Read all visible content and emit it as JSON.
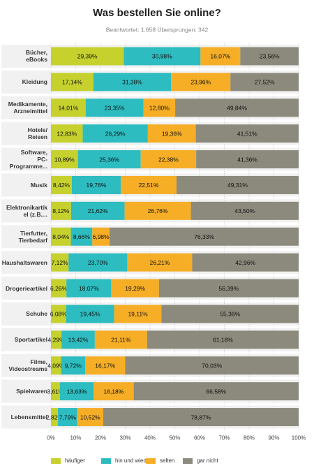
{
  "chart_data": {
    "type": "stacked-bar-horizontal",
    "title": "Was bestellen Sie online?",
    "subtitle": "Beantwortet: 1.658  Übersprungen: 342",
    "categories": [
      "Bücher,\neBooks",
      "Kleidung",
      "Medikamente,\nArzneimittel",
      "Hotels/\nReisen",
      "Software,\nPC-\nProgramme...",
      "Musik",
      "Elektronikartik\nel (z.B....",
      "Tierfutter,\nTierbedarf",
      "Haushaltswaren",
      "Drogerieartikel",
      "Schuhe",
      "Sportartikel",
      "Filme,\nVideostreams",
      "Spielwaren",
      "Lebensmittel"
    ],
    "series": [
      {
        "name": "häufiger",
        "color": "#c6d12e",
        "values": [
          29.39,
          17.14,
          14.01,
          12.83,
          10.89,
          8.42,
          8.12,
          8.04,
          7.12,
          6.26,
          6.08,
          4.29,
          4.09,
          3.61,
          2.82
        ],
        "value_labels": [
          "29,39%",
          "17,14%",
          "14,01%",
          "12,83%",
          "10,89%",
          "8,42%",
          "8,12%",
          "8,04%",
          "7,12%",
          "6,26%",
          "6,08%",
          "4,29%",
          "4,09%",
          "3,61%",
          "2,82%"
        ]
      },
      {
        "name": "hin und wieder",
        "color": "#2dbcc0",
        "values": [
          30.98,
          31.38,
          23.35,
          26.29,
          25.36,
          19.76,
          21.62,
          8.66,
          23.7,
          18.07,
          19.45,
          13.42,
          9.72,
          13.63,
          7.79
        ],
        "value_labels": [
          "30,98%",
          "31,38%",
          "23,35%",
          "26,29%",
          "25,36%",
          "19,76%",
          "21,62%",
          "8,66%",
          "23,70%",
          "18,07%",
          "19,45%",
          "13,42%",
          "9,72%",
          "13,63%",
          "7,79%"
        ]
      },
      {
        "name": "selten",
        "color": "#f6ae26",
        "values": [
          16.07,
          23.96,
          12.8,
          19.36,
          22.38,
          22.51,
          26.76,
          6.98,
          26.21,
          19.29,
          19.11,
          21.11,
          16.17,
          16.18,
          10.52
        ],
        "value_labels": [
          "16,07%",
          "23,96%",
          "12,80%",
          "19,36%",
          "22,38%",
          "22,51%",
          "26,76%",
          "6,98%",
          "26,21%",
          "19,29%",
          "19,11%",
          "21,11%",
          "16,17%",
          "16,18%",
          "10,52%"
        ]
      },
      {
        "name": "gar nicht",
        "color": "#8b8a7c",
        "values": [
          23.56,
          27.52,
          49.84,
          41.51,
          41.36,
          49.31,
          43.5,
          76.33,
          42.96,
          56.39,
          55.36,
          61.18,
          70.03,
          66.58,
          78.87
        ],
        "value_labels": [
          "23,56%",
          "27,52%",
          "49,84%",
          "41,51%",
          "41,36%",
          "49,31%",
          "43,50%",
          "76,33%",
          "42,96%",
          "56,39%",
          "55,36%",
          "61,18%",
          "70,03%",
          "66,58%",
          "78,87%"
        ]
      }
    ],
    "xlim": [
      0,
      100
    ],
    "xticks": [
      {
        "value": 0,
        "label": "0%"
      },
      {
        "value": 10,
        "label": "10%"
      },
      {
        "value": 20,
        "label": "20%"
      },
      {
        "value": 30,
        "label": "30%"
      },
      {
        "value": 40,
        "label": "40%"
      },
      {
        "value": 50,
        "label": "50%"
      },
      {
        "value": 60,
        "label": "60%"
      },
      {
        "value": 70,
        "label": "70%"
      },
      {
        "value": 80,
        "label": "80%"
      },
      {
        "value": 90,
        "label": "90%"
      },
      {
        "value": 100,
        "label": "100%"
      }
    ],
    "grid": true
  }
}
